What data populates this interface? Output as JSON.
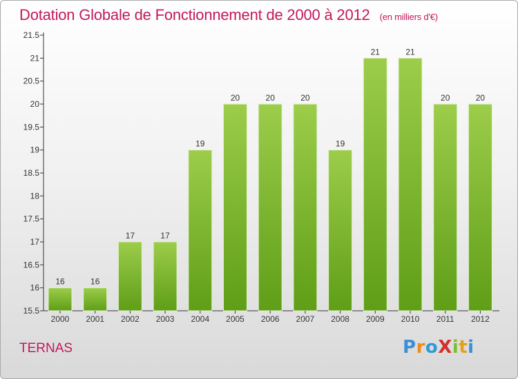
{
  "colors": {
    "title": "#c2185b",
    "bar_top": "#9ccd4a",
    "bar_bottom": "#5f9e17",
    "axis": "#333333"
  },
  "location": "TERNAS",
  "logo": {
    "text": "ProXiti",
    "letter_colors": [
      "#3b8fd6",
      "#f08a1a",
      "#2e9bd6",
      "#d62e2e",
      "#7dbf2a",
      "#e2a21a",
      "#3b8fd6"
    ]
  },
  "chart_data": {
    "type": "bar",
    "title": "Dotation Globale de Fonctionnement de 2000 à 2012",
    "subtitle": "(en milliers d'€)",
    "categories": [
      "2000",
      "2001",
      "2002",
      "2003",
      "2004",
      "2005",
      "2006",
      "2007",
      "2008",
      "2009",
      "2010",
      "2011",
      "2012"
    ],
    "values": [
      16,
      16,
      17,
      17,
      19,
      20,
      20,
      20,
      19,
      21,
      21,
      20,
      20
    ],
    "ylim": [
      15.5,
      21.5
    ],
    "yticks": [
      "15.5",
      "16",
      "16.5",
      "17",
      "17.5",
      "18",
      "18.5",
      "19",
      "19.5",
      "20",
      "20.5",
      "21",
      "21.5"
    ],
    "grid": false,
    "xlabel": "",
    "ylabel": ""
  }
}
